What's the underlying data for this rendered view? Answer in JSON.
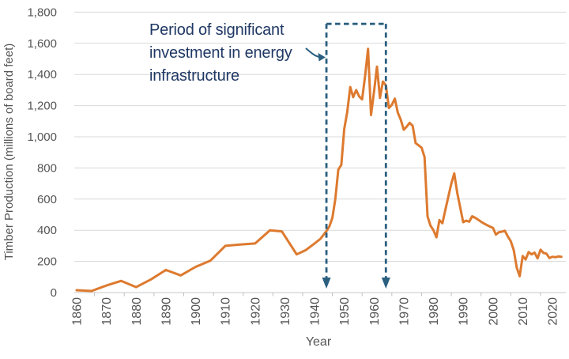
{
  "chart_data": {
    "type": "line",
    "title": "",
    "xlabel": "Year",
    "ylabel": "Timber Production (millions of board feet)",
    "ylim": [
      0,
      1800
    ],
    "xlim": [
      1860,
      2023
    ],
    "grid": "horizontal",
    "legend": "none",
    "y_ticks": [
      [
        0,
        "0"
      ],
      [
        200,
        "200"
      ],
      [
        400,
        "400"
      ],
      [
        600,
        "600"
      ],
      [
        800,
        "800"
      ],
      [
        1000,
        "1,000"
      ],
      [
        1200,
        "1,200"
      ],
      [
        1400,
        "1,400"
      ],
      [
        1600,
        "1,600"
      ],
      [
        1800,
        "1,800"
      ]
    ],
    "x_ticks": [
      1860,
      1870,
      1880,
      1890,
      1900,
      1910,
      1920,
      1930,
      1940,
      1950,
      1960,
      1970,
      1980,
      1990,
      2000,
      2010,
      2020
    ],
    "series": [
      {
        "name": "Timber Production",
        "points": [
          [
            1860,
            15
          ],
          [
            1865,
            10
          ],
          [
            1870,
            45
          ],
          [
            1875,
            75
          ],
          [
            1880,
            35
          ],
          [
            1885,
            85
          ],
          [
            1890,
            145
          ],
          [
            1895,
            110
          ],
          [
            1900,
            165
          ],
          [
            1905,
            205
          ],
          [
            1910,
            300
          ],
          [
            1915,
            308
          ],
          [
            1920,
            315
          ],
          [
            1925,
            400
          ],
          [
            1929,
            393
          ],
          [
            1934,
            245
          ],
          [
            1937,
            272
          ],
          [
            1940,
            315
          ],
          [
            1942,
            345
          ],
          [
            1944,
            395
          ],
          [
            1945,
            425
          ],
          [
            1946,
            480
          ],
          [
            1947,
            600
          ],
          [
            1948,
            790
          ],
          [
            1949,
            820
          ],
          [
            1950,
            1050
          ],
          [
            1951,
            1160
          ],
          [
            1952,
            1320
          ],
          [
            1953,
            1255
          ],
          [
            1954,
            1300
          ],
          [
            1955,
            1260
          ],
          [
            1956,
            1240
          ],
          [
            1957,
            1390
          ],
          [
            1958,
            1565
          ],
          [
            1959,
            1140
          ],
          [
            1960,
            1290
          ],
          [
            1961,
            1450
          ],
          [
            1962,
            1250
          ],
          [
            1963,
            1355
          ],
          [
            1964,
            1330
          ],
          [
            1965,
            1185
          ],
          [
            1966,
            1205
          ],
          [
            1967,
            1245
          ],
          [
            1968,
            1155
          ],
          [
            1969,
            1110
          ],
          [
            1970,
            1045
          ],
          [
            1971,
            1065
          ],
          [
            1972,
            1090
          ],
          [
            1973,
            1070
          ],
          [
            1974,
            960
          ],
          [
            1975,
            945
          ],
          [
            1976,
            930
          ],
          [
            1977,
            870
          ],
          [
            1978,
            490
          ],
          [
            1979,
            430
          ],
          [
            1980,
            400
          ],
          [
            1981,
            355
          ],
          [
            1982,
            465
          ],
          [
            1983,
            445
          ],
          [
            1984,
            530
          ],
          [
            1985,
            615
          ],
          [
            1986,
            700
          ],
          [
            1987,
            765
          ],
          [
            1988,
            640
          ],
          [
            1989,
            545
          ],
          [
            1990,
            452
          ],
          [
            1991,
            462
          ],
          [
            1992,
            455
          ],
          [
            1993,
            490
          ],
          [
            1994,
            480
          ],
          [
            1995,
            468
          ],
          [
            1996,
            455
          ],
          [
            1997,
            443
          ],
          [
            1998,
            433
          ],
          [
            1999,
            424
          ],
          [
            2000,
            415
          ],
          [
            2001,
            372
          ],
          [
            2002,
            388
          ],
          [
            2003,
            391
          ],
          [
            2004,
            397
          ],
          [
            2005,
            360
          ],
          [
            2006,
            330
          ],
          [
            2007,
            272
          ],
          [
            2008,
            160
          ],
          [
            2009,
            105
          ],
          [
            2010,
            235
          ],
          [
            2011,
            212
          ],
          [
            2012,
            260
          ],
          [
            2013,
            245
          ],
          [
            2014,
            257
          ],
          [
            2015,
            220
          ],
          [
            2016,
            275
          ],
          [
            2017,
            255
          ],
          [
            2018,
            250
          ],
          [
            2019,
            222
          ],
          [
            2020,
            230
          ],
          [
            2021,
            227
          ],
          [
            2022,
            232
          ],
          [
            2023,
            230
          ]
        ]
      }
    ]
  },
  "annotation": {
    "lines": [
      "Period of significant",
      "investment in energy",
      "infrastructure"
    ],
    "span_start_year": 1944,
    "span_end_year": 1964,
    "box_top_value": 1725
  },
  "colors": {
    "line": "#DD7A2F",
    "annotation_text": "#1F3864",
    "annotation_shape": "#2B5F7F",
    "axis_text": "#555555",
    "gridline": "#D9D9D9",
    "axis_line": "#D2D2D2",
    "tick_mark": "#BFBFBF"
  }
}
